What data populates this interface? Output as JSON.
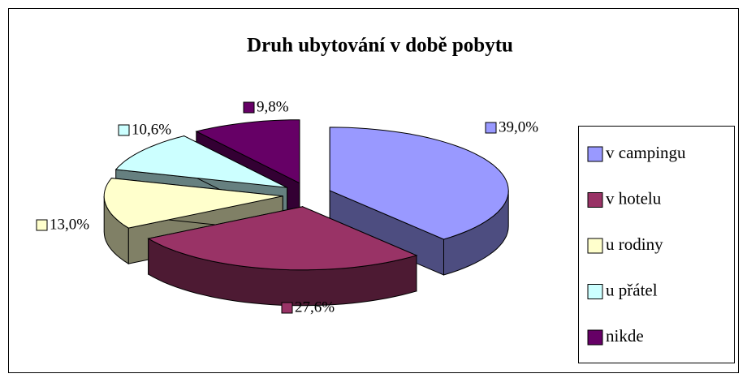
{
  "chart_data": {
    "type": "pie3d",
    "title": "Druh ubytování v době pobytu",
    "categories": [
      "v campingu",
      "v hotelu",
      "u rodiny",
      "u přátel",
      "nikde"
    ],
    "values": [
      39.0,
      27.6,
      13.0,
      10.6,
      9.8
    ],
    "value_labels": [
      "39,0%",
      "27,6%",
      "13,0%",
      "10,6%",
      "9,8%"
    ],
    "colors": [
      "#9999ff",
      "#993366",
      "#ffffcc",
      "#ccffff",
      "#660066"
    ],
    "legend": "right"
  }
}
